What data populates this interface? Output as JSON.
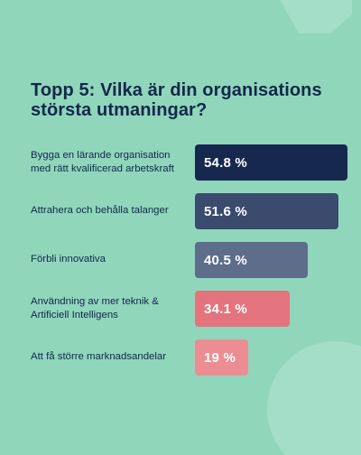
{
  "header": {
    "title": "Topp 5: Vilka är din organisations största utmaningar?"
  },
  "chart_data": {
    "type": "bar",
    "orientation": "horizontal",
    "title": "Topp 5: Vilka är din organisations största utmaningar?",
    "categories": [
      "Bygga en lärande organisation med rätt kvalificerad arbetskraft",
      "Attrahera och behålla talanger",
      "Förbli innovativa",
      "Användning av mer teknik & Artificiell Intelligens",
      "Att få större marknadsandelar"
    ],
    "values": [
      54.8,
      51.6,
      40.5,
      34.1,
      19
    ],
    "value_labels": [
      "54.8 %",
      "51.6 %",
      "40.5 %",
      "34.1 %",
      "19 %"
    ],
    "unit": "%",
    "bar_colors": [
      "#17284f",
      "#3a4b6e",
      "#5d6d8a",
      "#e3747d",
      "#ec8d93"
    ],
    "grid": false,
    "legend": "none"
  },
  "colors": {
    "background": "#8fd6bb",
    "title": "#14264c",
    "label": "#14264c",
    "value_text": "#ffffff",
    "decoration": "#a5dec8"
  }
}
